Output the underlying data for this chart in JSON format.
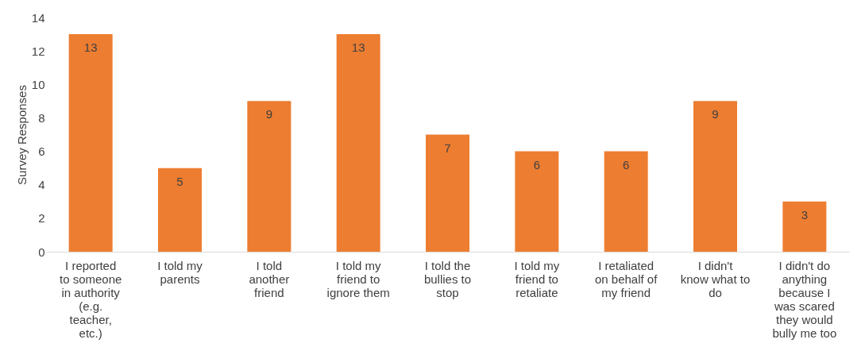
{
  "chart_data": {
    "type": "bar",
    "ylabel": "Survey Responses",
    "categories": [
      "I reported to someone in authority (e.g. teacher, etc.)",
      "I told my parents",
      "I told another friend",
      "I told my friend to ignore them",
      "I told the bullies to stop",
      "I told my friend to retaliate",
      "I retaliated on behalf of my friend",
      "I didn't know what to do",
      "I didn't do anything because I was scared they would bully me too"
    ],
    "values": [
      13,
      5,
      9,
      13,
      7,
      6,
      6,
      9,
      3
    ],
    "color": "#ed7d31",
    "ylim": [
      0,
      14
    ],
    "yticks": [
      0,
      2,
      4,
      6,
      8,
      10,
      12,
      14
    ],
    "grid": false,
    "data_labels": true
  }
}
